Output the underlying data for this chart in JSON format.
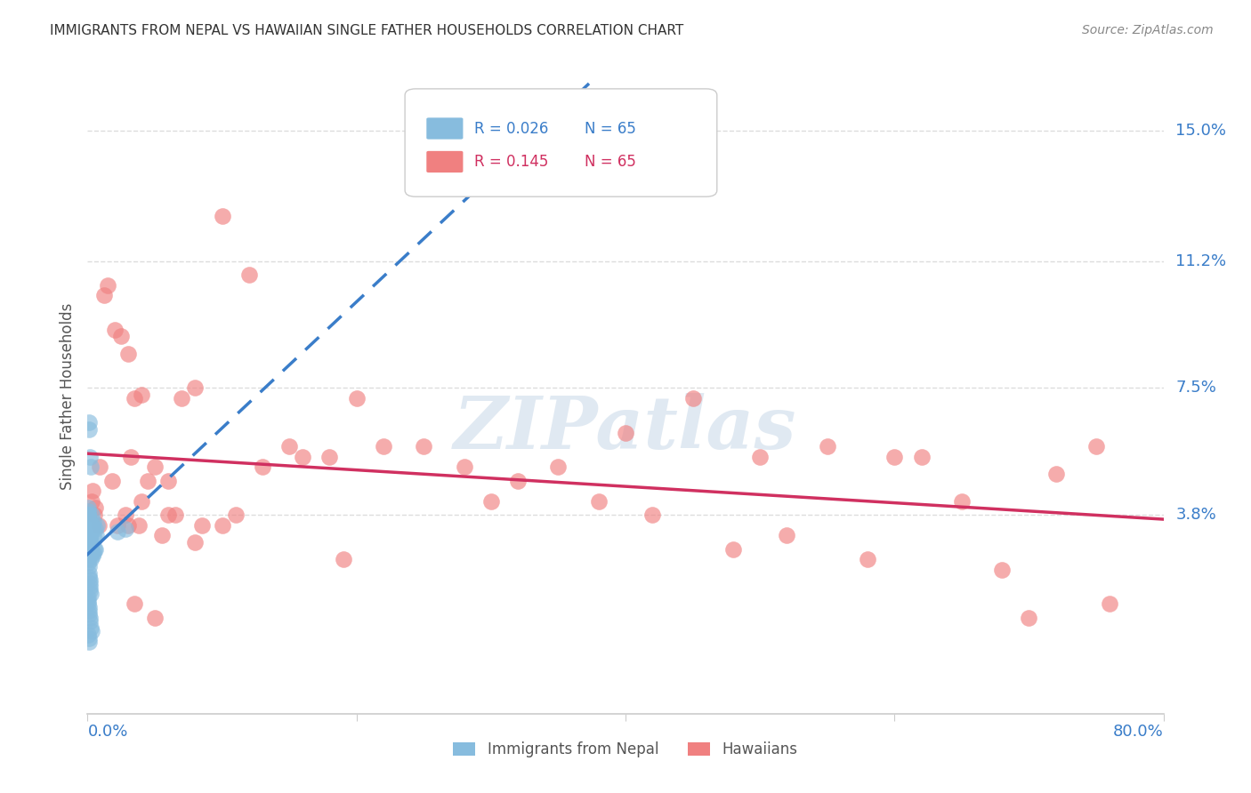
{
  "title": "IMMIGRANTS FROM NEPAL VS HAWAIIAN SINGLE FATHER HOUSEHOLDS CORRELATION CHART",
  "source": "Source: ZipAtlas.com",
  "ylabel": "Single Father Households",
  "ytick_labels": [
    "15.0%",
    "11.2%",
    "7.5%",
    "3.8%"
  ],
  "ytick_values": [
    15.0,
    11.2,
    7.5,
    3.8
  ],
  "xmin": 0.0,
  "xmax": 80.0,
  "ymin": -2.0,
  "ymax": 16.5,
  "legend_entries": [
    {
      "label": "Immigrants from Nepal",
      "color": "#87BCDE",
      "line_color": "#3A7DC9",
      "R": "0.026",
      "N": "65"
    },
    {
      "label": "Hawaiians",
      "color": "#F08080",
      "line_color": "#D03060",
      "R": "0.145",
      "N": "65"
    }
  ],
  "nepal_x": [
    0.08,
    0.12,
    0.18,
    0.22,
    0.28,
    0.35,
    0.4,
    0.5,
    0.6,
    0.7,
    0.05,
    0.08,
    0.1,
    0.12,
    0.15,
    0.18,
    0.2,
    0.22,
    0.25,
    0.3,
    0.05,
    0.06,
    0.08,
    0.1,
    0.12,
    0.14,
    0.16,
    0.18,
    0.2,
    0.22,
    0.04,
    0.05,
    0.06,
    0.08,
    0.1,
    0.12,
    0.14,
    0.16,
    0.18,
    0.2,
    0.04,
    0.05,
    0.06,
    0.08,
    0.1,
    0.12,
    0.14,
    0.16,
    0.22,
    0.28,
    2.2,
    2.8,
    0.35,
    0.45,
    0.55,
    0.65,
    0.25,
    0.38,
    0.45,
    0.52,
    0.04,
    0.05,
    0.05,
    0.08,
    0.12
  ],
  "nepal_y": [
    6.5,
    6.3,
    5.5,
    5.2,
    3.8,
    3.5,
    3.4,
    3.1,
    2.8,
    3.5,
    3.8,
    3.6,
    3.5,
    3.4,
    3.2,
    3.1,
    3.0,
    2.9,
    2.8,
    2.7,
    2.5,
    2.4,
    2.3,
    2.1,
    2.0,
    1.9,
    1.8,
    1.7,
    1.6,
    1.5,
    3.9,
    3.8,
    3.7,
    3.6,
    3.5,
    3.4,
    3.3,
    3.2,
    3.1,
    3.0,
    1.4,
    1.3,
    1.2,
    1.1,
    1.0,
    0.9,
    0.8,
    0.7,
    0.5,
    0.4,
    3.3,
    3.4,
    3.5,
    3.6,
    3.4,
    3.2,
    2.5,
    2.6,
    2.7,
    2.8,
    4.0,
    3.8,
    0.3,
    0.2,
    0.1
  ],
  "hawaii_x": [
    0.5,
    0.8,
    1.2,
    1.5,
    2.0,
    2.5,
    3.0,
    3.5,
    4.0,
    5.0,
    6.0,
    7.0,
    8.0,
    10.0,
    12.0,
    15.0,
    18.0,
    20.0,
    25.0,
    30.0,
    35.0,
    40.0,
    45.0,
    50.0,
    55.0,
    60.0,
    65.0,
    70.0,
    75.0,
    76.0,
    0.3,
    0.4,
    0.6,
    0.9,
    1.8,
    2.2,
    2.8,
    3.2,
    3.8,
    4.5,
    5.5,
    6.5,
    8.5,
    11.0,
    13.0,
    16.0,
    19.0,
    22.0,
    28.0,
    32.0,
    38.0,
    42.0,
    48.0,
    52.0,
    58.0,
    62.0,
    68.0,
    72.0,
    3.0,
    4.0,
    6.0,
    8.0,
    10.0,
    5.0,
    3.5
  ],
  "hawaii_y": [
    3.8,
    3.5,
    10.2,
    10.5,
    9.2,
    9.0,
    8.5,
    7.2,
    7.3,
    5.2,
    4.8,
    7.2,
    7.5,
    12.5,
    10.8,
    5.8,
    5.5,
    7.2,
    5.8,
    4.2,
    5.2,
    6.2,
    7.2,
    5.5,
    5.8,
    5.5,
    4.2,
    0.8,
    5.8,
    1.2,
    4.2,
    4.5,
    4.0,
    5.2,
    4.8,
    3.5,
    3.8,
    5.5,
    3.5,
    4.8,
    3.2,
    3.8,
    3.5,
    3.8,
    5.2,
    5.5,
    2.5,
    5.8,
    5.2,
    4.8,
    4.2,
    3.8,
    2.8,
    3.2,
    2.5,
    5.5,
    2.2,
    5.0,
    3.5,
    4.2,
    3.8,
    3.0,
    3.5,
    0.8,
    1.2
  ],
  "bg_color": "#FFFFFF",
  "grid_color": "#DDDDDD",
  "watermark_text": "ZIPatlas",
  "watermark_color": "#C8D8E8"
}
